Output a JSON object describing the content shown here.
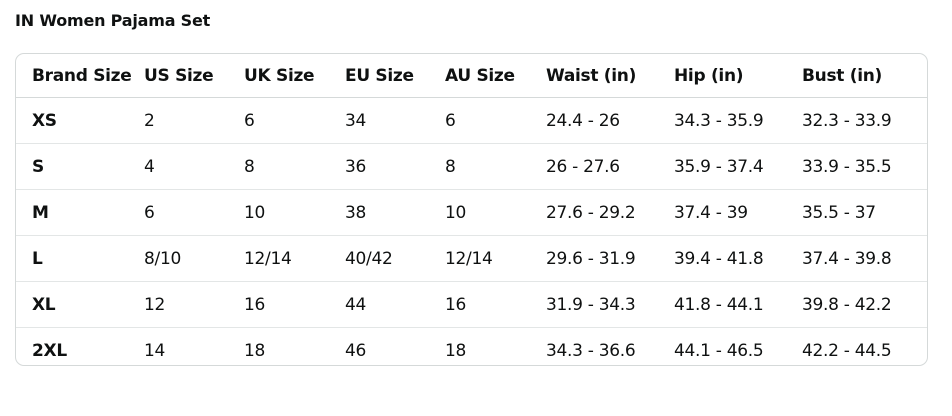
{
  "title": "IN Women Pajama Set",
  "table": {
    "headers": [
      "Brand Size",
      "US Size",
      "UK Size",
      "EU Size",
      "AU Size",
      "Waist (in)",
      "Hip (in)",
      "Bust (in)"
    ],
    "rows": [
      [
        "XS",
        "2",
        "6",
        "34",
        "6",
        "24.4 - 26",
        "34.3 - 35.9",
        "32.3 - 33.9"
      ],
      [
        "S",
        "4",
        "8",
        "36",
        "8",
        "26 - 27.6",
        "35.9 - 37.4",
        "33.9 - 35.5"
      ],
      [
        "M",
        "6",
        "10",
        "38",
        "10",
        "27.6 - 29.2",
        "37.4 - 39",
        "35.5 - 37"
      ],
      [
        "L",
        "8/10",
        "12/14",
        "40/42",
        "12/14",
        "29.6 - 31.9",
        "39.4 - 41.8",
        "37.4 - 39.8"
      ],
      [
        "XL",
        "12",
        "16",
        "44",
        "16",
        "31.9 - 34.3",
        "41.8 - 44.1",
        "39.8 - 42.2"
      ],
      [
        "2XL",
        "14",
        "18",
        "46",
        "18",
        "34.3 - 36.6",
        "44.1 - 46.5",
        "42.2 - 44.5"
      ]
    ]
  }
}
